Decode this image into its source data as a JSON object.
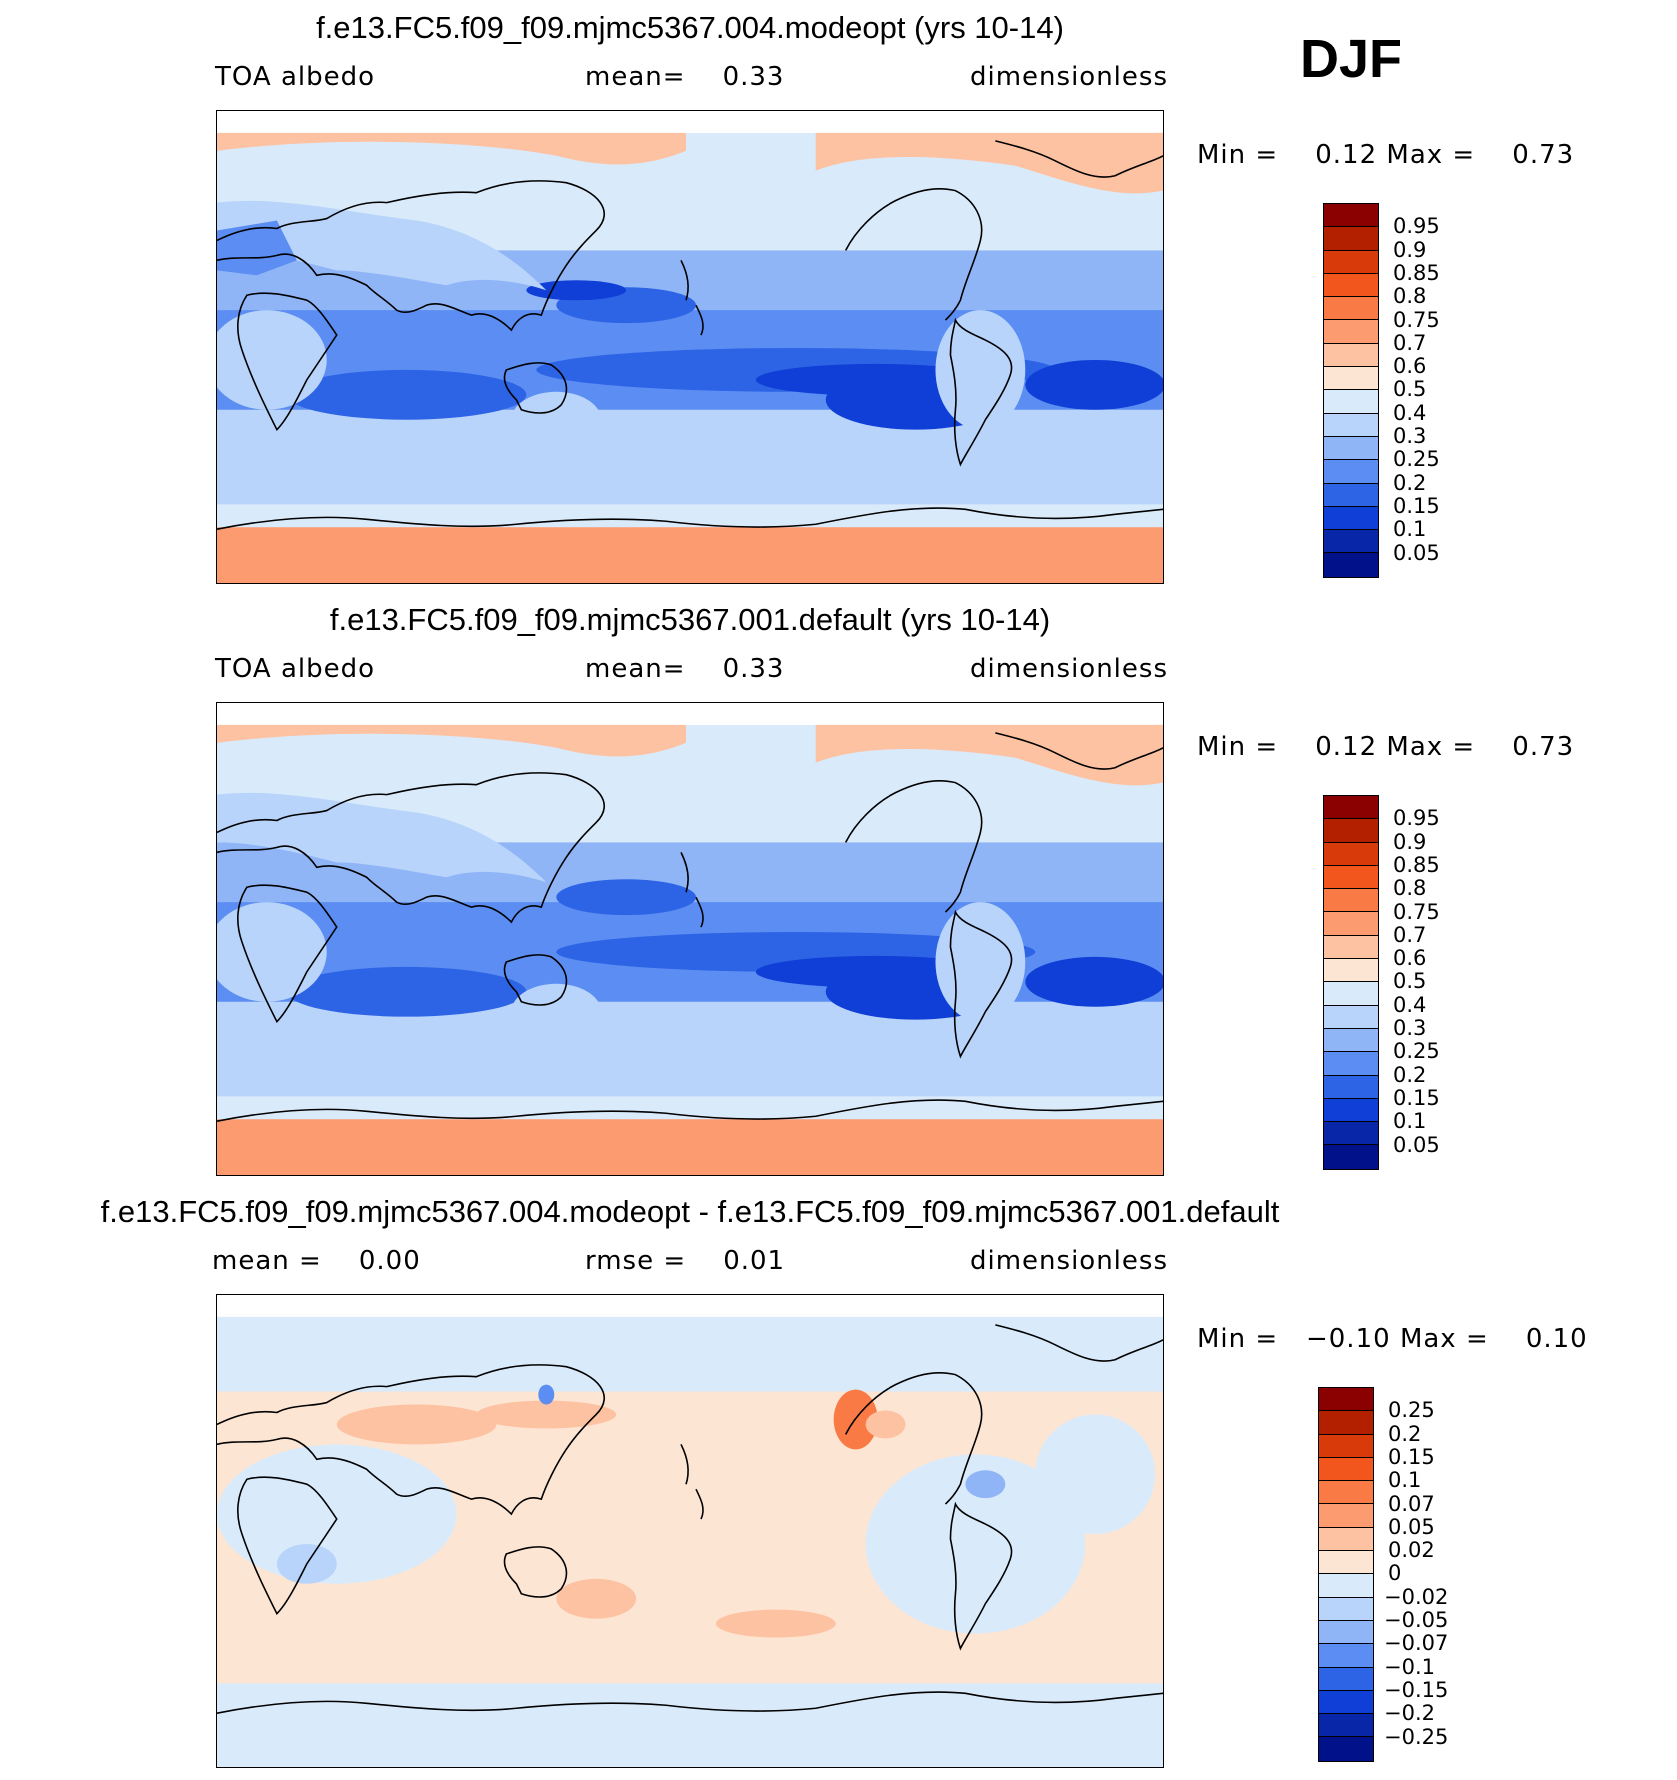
{
  "season": "DJF",
  "panels": [
    {
      "title": "f.e13.FC5.f09_f09.mjmc5367.004.modeopt (yrs 10-14)",
      "left_label": "TOA albedo",
      "center_label": "mean=    0.33",
      "right_label": "dimensionless",
      "min_label": "Min =",
      "min_value": "0.12",
      "max_label": "Max =",
      "max_value": "0.73",
      "type": "field"
    },
    {
      "title": "f.e13.FC5.f09_f09.mjmc5367.001.default (yrs 10-14)",
      "left_label": "TOA albedo",
      "center_label": "mean=    0.33",
      "right_label": "dimensionless",
      "min_label": "Min =",
      "min_value": "0.12",
      "max_label": "Max =",
      "max_value": "0.73",
      "type": "field"
    },
    {
      "title": "f.e13.FC5.f09_f09.mjmc5367.004.modeopt - f.e13.FC5.f09_f09.mjmc5367.001.default",
      "left_label": "mean =    0.00",
      "center_label": "rmse =    0.01",
      "right_label": "dimensionless",
      "min_label": "Min =",
      "min_value": "−0.10",
      "max_label": "Max =",
      "max_value": "0.10",
      "type": "diff"
    }
  ],
  "colorbars": {
    "field": {
      "labels": [
        "0.95",
        "0.9",
        "0.85",
        "0.8",
        "0.75",
        "0.7",
        "0.6",
        "0.5",
        "0.4",
        "0.3",
        "0.25",
        "0.2",
        "0.15",
        "0.1",
        "0.05"
      ],
      "colors": [
        "#8b0000",
        "#b22000",
        "#d93a0a",
        "#f2561c",
        "#fa7a45",
        "#fc9a70",
        "#fdc2a2",
        "#fde5d3",
        "#d9ebfb",
        "#b8d4fa",
        "#8fb5f7",
        "#5b8df2",
        "#2d64e6",
        "#0f3fd6",
        "#0826a8",
        "#00118a"
      ]
    },
    "diff": {
      "labels": [
        "0.25",
        "0.2",
        "0.15",
        "0.1",
        "0.07",
        "0.05",
        "0.02",
        "0",
        "−0.02",
        "−0.05",
        "−0.07",
        "−0.1",
        "−0.15",
        "−0.2",
        "−0.25"
      ],
      "colors": [
        "#8b0000",
        "#b22000",
        "#d93a0a",
        "#f2561c",
        "#fa7a45",
        "#fc9a70",
        "#fdc2a2",
        "#fde5d3",
        "#d9ebfb",
        "#b8d4fa",
        "#8fb5f7",
        "#5b8df2",
        "#2d64e6",
        "#0f3fd6",
        "#0826a8",
        "#00118a"
      ]
    }
  }
}
